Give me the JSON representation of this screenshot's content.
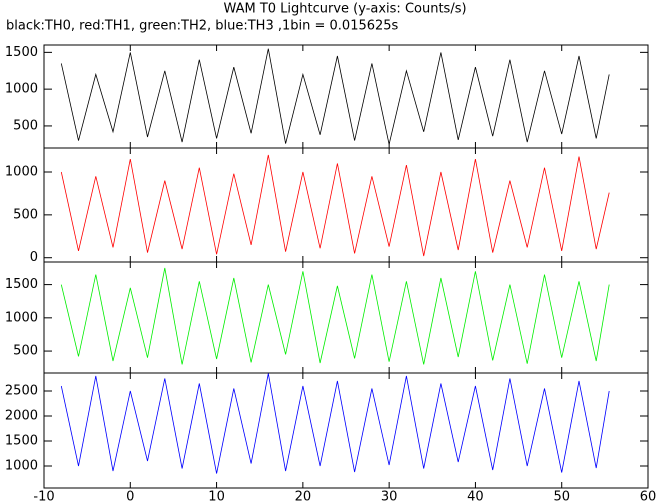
{
  "title": "WAM T0 Lightcurve (y-axis: Counts/s)",
  "subtitle": "black:TH0, red:TH1, green:TH2, blue:TH3 ,1bin = 0.015625s",
  "chart_data": [
    {
      "type": "line",
      "xlim": [
        -10,
        60
      ],
      "xticks": [
        -10,
        0,
        10,
        20,
        30,
        40,
        50,
        60
      ],
      "ylim": [
        200,
        1600
      ],
      "yticks": [
        500,
        1000,
        1500
      ],
      "x": [
        -8,
        -6,
        -4,
        -2,
        0,
        2,
        4,
        6,
        8,
        10,
        12,
        14,
        16,
        18,
        20,
        22,
        24,
        26,
        28,
        30,
        32,
        34,
        36,
        38,
        40,
        42,
        44,
        46,
        48,
        50,
        52,
        54,
        55.5
      ],
      "series": [
        {
          "color": "#000000",
          "values": [
            1350,
            300,
            1200,
            420,
            1500,
            350,
            1250,
            280,
            1400,
            330,
            1300,
            400,
            1550,
            260,
            1200,
            380,
            1450,
            300,
            1350,
            250,
            1250,
            420,
            1500,
            310,
            1300,
            360,
            1400,
            280,
            1250,
            390,
            1450,
            330,
            1200
          ]
        }
      ]
    },
    {
      "type": "line",
      "xlim": [
        -10,
        60
      ],
      "xticks": [
        -10,
        0,
        10,
        20,
        30,
        40,
        50,
        60
      ],
      "ylim": [
        -50,
        1280
      ],
      "yticks": [
        0,
        500,
        1000
      ],
      "x": [
        -8,
        -6,
        -4,
        -2,
        0,
        2,
        4,
        6,
        8,
        10,
        12,
        14,
        16,
        18,
        20,
        22,
        24,
        26,
        28,
        30,
        32,
        34,
        36,
        38,
        40,
        42,
        44,
        46,
        48,
        50,
        52,
        54,
        55.5
      ],
      "series": [
        {
          "color": "#ff0000",
          "values": [
            1000,
            80,
            950,
            120,
            1150,
            60,
            900,
            100,
            1050,
            40,
            980,
            150,
            1200,
            70,
            1000,
            110,
            1100,
            50,
            950,
            130,
            1080,
            20,
            1000,
            90,
            1150,
            60,
            900,
            120,
            1050,
            80,
            1180,
            100,
            760
          ]
        }
      ]
    },
    {
      "type": "line",
      "xlim": [
        -10,
        60
      ],
      "xticks": [
        -10,
        0,
        10,
        20,
        30,
        40,
        50,
        60
      ],
      "ylim": [
        170,
        1840
      ],
      "yticks": [
        500,
        1000,
        1500
      ],
      "x": [
        -8,
        -6,
        -4,
        -2,
        0,
        2,
        4,
        6,
        8,
        10,
        12,
        14,
        16,
        18,
        20,
        22,
        24,
        26,
        28,
        30,
        32,
        34,
        36,
        38,
        40,
        42,
        44,
        46,
        48,
        50,
        52,
        54,
        55.5
      ],
      "series": [
        {
          "color": "#00ee00",
          "values": [
            1500,
            420,
            1650,
            350,
            1450,
            400,
            1750,
            300,
            1550,
            380,
            1600,
            330,
            1500,
            450,
            1700,
            320,
            1480,
            390,
            1650,
            340,
            1550,
            300,
            1600,
            410,
            1700,
            360,
            1500,
            310,
            1650,
            400,
            1550,
            350,
            1500
          ]
        }
      ]
    },
    {
      "type": "line",
      "xlim": [
        -10,
        60
      ],
      "xticks": [
        -10,
        0,
        10,
        20,
        30,
        40,
        50,
        60
      ],
      "ylim": [
        560,
        2860
      ],
      "yticks": [
        1000,
        1500,
        2000,
        2500
      ],
      "x": [
        -8,
        -6,
        -4,
        -2,
        0,
        2,
        4,
        6,
        8,
        10,
        12,
        14,
        16,
        18,
        20,
        22,
        24,
        26,
        28,
        30,
        32,
        34,
        36,
        38,
        40,
        42,
        44,
        46,
        48,
        50,
        52,
        54,
        55.5
      ],
      "series": [
        {
          "color": "#0000ff",
          "values": [
            2600,
            1000,
            2800,
            900,
            2500,
            1100,
            2750,
            950,
            2650,
            850,
            2550,
            1050,
            2850,
            900,
            2600,
            1000,
            2700,
            880,
            2550,
            1020,
            2800,
            950,
            2650,
            1080,
            2600,
            920,
            2750,
            1000,
            2550,
            870,
            2700,
            960,
            2500
          ]
        }
      ]
    }
  ]
}
